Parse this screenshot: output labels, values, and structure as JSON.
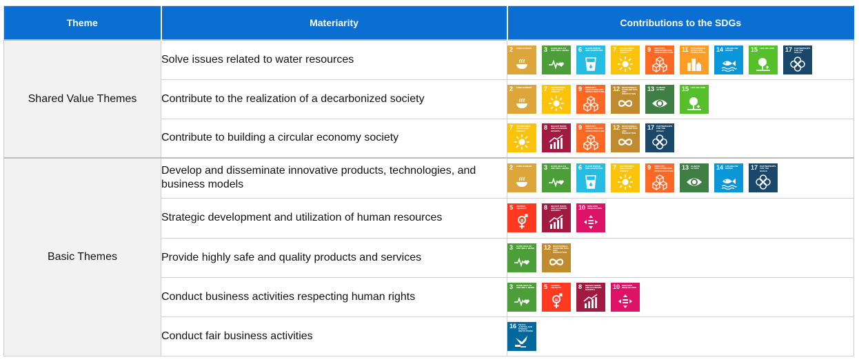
{
  "headers": {
    "theme": "Theme",
    "materiality": "Materiarity",
    "contributions": "Contributions to the SDGs"
  },
  "sdg_catalog": {
    "2": {
      "title": "ZERO HUNGER",
      "color": "#DDA63A",
      "icon": "bowl-icon"
    },
    "3": {
      "title": "GOOD HEALTH AND WELL-BEING",
      "color": "#4C9F38",
      "icon": "heartbeat-icon"
    },
    "5": {
      "title": "GENDER EQUALITY",
      "color": "#FF3A21",
      "icon": "gender-icon"
    },
    "6": {
      "title": "CLEAN WATER AND SANITATION",
      "color": "#26BDE2",
      "icon": "water-glass-icon"
    },
    "7": {
      "title": "AFFORDABLE AND CLEAN ENERGY",
      "color": "#FCC30B",
      "icon": "sun-icon"
    },
    "8": {
      "title": "DECENT WORK AND ECONOMIC GROWTH",
      "color": "#A21942",
      "icon": "growth-chart-icon"
    },
    "9": {
      "title": "INDUSTRY, INNOVATION AND INFRASTRUCTURE",
      "color": "#FD6925",
      "icon": "cubes-icon"
    },
    "10": {
      "title": "REDUCED INEQUALITIES",
      "color": "#DD1367",
      "icon": "equality-icon"
    },
    "11": {
      "title": "SUSTAINABLE CITIES AND COMMUNITIES",
      "color": "#FD9D24",
      "icon": "city-icon"
    },
    "12": {
      "title": "RESPONSIBLE CONSUMPTION AND PRODUCTION",
      "color": "#BF8B2E",
      "icon": "infinity-icon"
    },
    "13": {
      "title": "CLIMATE ACTION",
      "color": "#3F7E44",
      "icon": "eye-globe-icon"
    },
    "14": {
      "title": "LIFE BELOW WATER",
      "color": "#0A97D9",
      "icon": "fish-icon"
    },
    "15": {
      "title": "LIFE ON LAND",
      "color": "#56C02B",
      "icon": "tree-icon"
    },
    "16": {
      "title": "PEACE, JUSTICE AND STRONG INSTITUTIONS",
      "color": "#00689D",
      "icon": "dove-icon"
    },
    "17": {
      "title": "PARTNERSHIPS FOR THE GOALS",
      "color": "#19486A",
      "icon": "flower-icon"
    }
  },
  "groups": [
    {
      "theme": "Shared Value Themes",
      "rows": [
        {
          "materiality": "Solve issues related to water resources",
          "sdgs": [
            "2",
            "3",
            "6",
            "7",
            "9",
            "11",
            "14",
            "15",
            "17"
          ]
        },
        {
          "materiality": "Contribute to the realization of a decarbonized society",
          "sdgs": [
            "2",
            "7",
            "9",
            "12",
            "13",
            "15"
          ]
        },
        {
          "materiality": "Contribute to building a circular economy society",
          "sdgs": [
            "7",
            "8",
            "9",
            "12",
            "17"
          ]
        }
      ]
    },
    {
      "theme": "Basic Themes",
      "rows": [
        {
          "materiality": "Develop and disseminate innovative products, technologies, and business models",
          "sdgs": [
            "2",
            "3",
            "6",
            "7",
            "9",
            "13",
            "14",
            "17"
          ]
        },
        {
          "materiality": "Strategic development and utilization of human resources",
          "sdgs": [
            "5",
            "8",
            "10"
          ]
        },
        {
          "materiality": "Provide highly safe and quality products and services",
          "sdgs": [
            "3",
            "12"
          ]
        },
        {
          "materiality": "Conduct business activities respecting human rights",
          "sdgs": [
            "3",
            "5",
            "8",
            "10"
          ]
        },
        {
          "materiality": "Conduct fair business activities",
          "sdgs": [
            "16"
          ]
        }
      ]
    }
  ]
}
